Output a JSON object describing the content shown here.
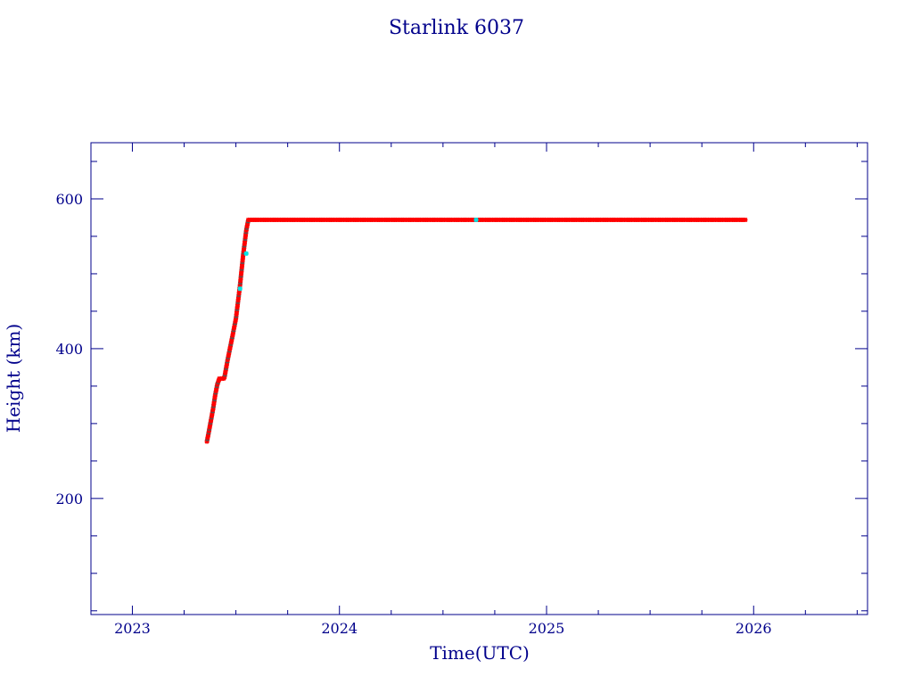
{
  "chart_data": {
    "type": "scatter",
    "title": "Starlink 6037",
    "xlabel": "Time(UTC)",
    "ylabel": "Height (km)",
    "xlim": [
      2022.8,
      2026.55
    ],
    "ylim": [
      45,
      675
    ],
    "x_ticks": [
      "2023",
      "2024",
      "2025",
      "2026"
    ],
    "y_ticks": [
      "200",
      "400",
      "600"
    ],
    "grid": false,
    "colors": {
      "frame": "#00008b",
      "text": "#00008b",
      "series_main": "#ff0000",
      "series_alt": "#00e5e5",
      "series_dark": "#555555"
    },
    "series": [
      {
        "values": [
          [
            2023.36,
            276
          ],
          [
            2023.37,
            290
          ],
          [
            2023.38,
            305
          ],
          [
            2023.39,
            320
          ],
          [
            2023.4,
            338
          ],
          [
            2023.41,
            352
          ],
          [
            2023.42,
            360
          ],
          [
            2023.44,
            360
          ],
          [
            2023.445,
            362
          ],
          [
            2023.46,
            385
          ],
          [
            2023.48,
            412
          ],
          [
            2023.5,
            440
          ],
          [
            2023.52,
            485
          ],
          [
            2023.535,
            525
          ],
          [
            2023.55,
            558
          ],
          [
            2023.56,
            572
          ],
          [
            2023.6,
            572
          ],
          [
            2024.0,
            572
          ],
          [
            2024.5,
            572
          ],
          [
            2025.0,
            572
          ],
          [
            2025.5,
            572
          ],
          [
            2025.96,
            572
          ]
        ]
      },
      {
        "values": [
          [
            2023.52,
            480
          ],
          [
            2023.55,
            527
          ],
          [
            2024.66,
            572
          ]
        ]
      }
    ]
  }
}
